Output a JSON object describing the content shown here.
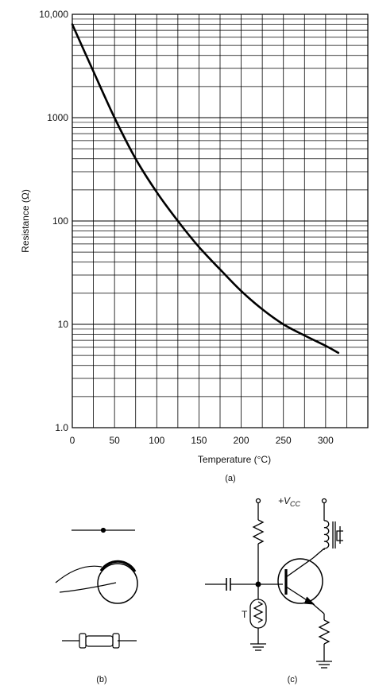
{
  "chart_data": {
    "type": "line",
    "xlabel": "Temperature (°C)",
    "ylabel": "Resistance (Ω)",
    "xscale": "linear",
    "yscale": "log",
    "xlim": [
      0,
      350
    ],
    "ylim": [
      1,
      10000
    ],
    "grid": true,
    "x_ticks": [
      "0",
      "50",
      "100",
      "150",
      "200",
      "250",
      "300"
    ],
    "y_ticks": [
      "1.0",
      "10",
      "100",
      "1000",
      "10,000"
    ],
    "series": [
      {
        "x": [
          0,
          25,
          50,
          75,
          100,
          125,
          150,
          175,
          200,
          225,
          250,
          275,
          300,
          315
        ],
        "y": [
          8000,
          2800,
          1000,
          400,
          190,
          100,
          56,
          34,
          21,
          14,
          10,
          7.8,
          6.2,
          5.3
        ]
      }
    ]
  },
  "captions": {
    "a": "(a)",
    "b": "(b)",
    "c": "(c)"
  },
  "circuit": {
    "supply_label": "+V",
    "supply_subscript": "CC",
    "thermistor_label": "T"
  }
}
